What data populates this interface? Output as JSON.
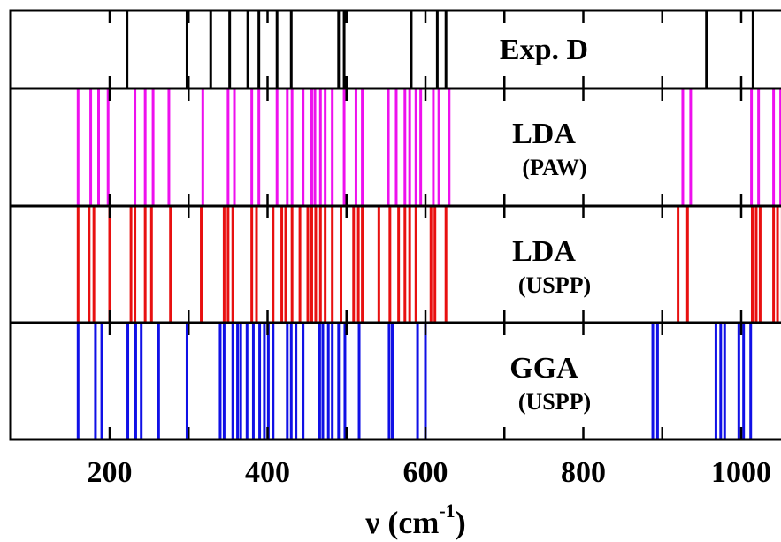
{
  "chart_data": {
    "type": "stick-spectrum",
    "xlabel": {
      "symbol": "ν",
      "unit_open": "(cm",
      "unit_exp": "-1",
      "unit_close": ")"
    },
    "xlim": [
      100,
      1060
    ],
    "xticks": [
      200,
      400,
      600,
      800,
      1000
    ],
    "xtick_labels": [
      "200",
      "400",
      "600",
      "800",
      "1000"
    ],
    "minor_xticks": [
      300,
      500,
      700,
      900
    ],
    "panels": [
      {
        "name": "Exp. D",
        "label": "Exp. D",
        "sublabel": "",
        "color": "#000000",
        "lines": [
          222,
          298,
          328,
          352,
          375,
          389,
          412,
          430,
          490,
          497,
          582,
          615,
          626,
          956,
          1015,
          1053
        ]
      },
      {
        "name": "LDA (PAW)",
        "label": "LDA",
        "sublabel": "(PAW)",
        "color": "#ee10ee",
        "lines": [
          160,
          176,
          186,
          198,
          232,
          245,
          255,
          275,
          318,
          350,
          358,
          380,
          389,
          412,
          425,
          431,
          445,
          456,
          460,
          467,
          473,
          482,
          497,
          512,
          520,
          553,
          563,
          574,
          580,
          588,
          594,
          610,
          617,
          630,
          926,
          936,
          1013,
          1022,
          1041,
          1050
        ]
      },
      {
        "name": "LDA (USPP)",
        "label": "LDA",
        "sublabel": "(USPP)",
        "color": "#e81010",
        "lines": [
          160,
          174,
          180,
          200,
          227,
          232,
          245,
          253,
          277,
          316,
          345,
          350,
          356,
          380,
          386,
          407,
          418,
          423,
          431,
          441,
          451,
          456,
          461,
          467,
          473,
          482,
          493,
          509,
          515,
          520,
          541,
          555,
          566,
          574,
          580,
          588,
          607,
          612,
          626,
          920,
          932,
          1014,
          1019,
          1024,
          1041,
          1046,
          1052
        ]
      },
      {
        "name": "GGA (USPP)",
        "label": "GGA",
        "sublabel": "(USPP)",
        "color": "#1010e6",
        "lines": [
          160,
          182,
          190,
          223,
          233,
          240,
          262,
          298,
          340,
          345,
          356,
          362,
          366,
          374,
          382,
          390,
          396,
          401,
          407,
          425,
          430,
          436,
          445,
          466,
          470,
          477,
          482,
          490,
          498,
          516,
          554,
          558,
          590,
          600,
          888,
          894,
          968,
          974,
          979,
          997,
          1003,
          1012
        ]
      }
    ]
  }
}
